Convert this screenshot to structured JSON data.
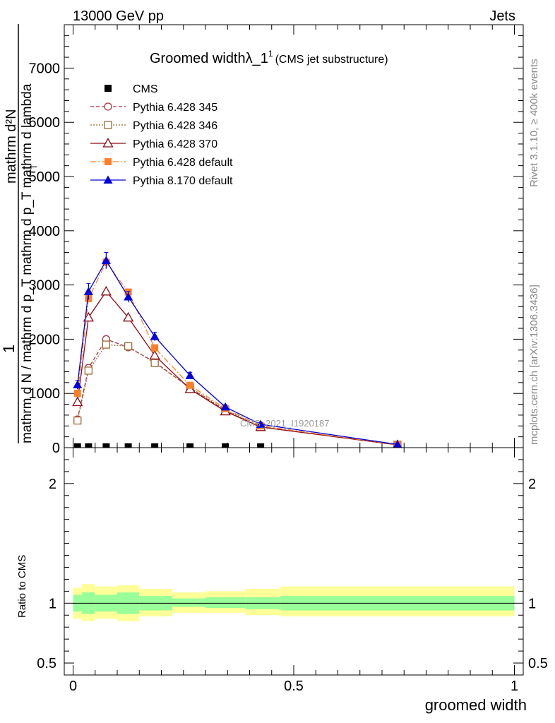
{
  "header": {
    "left": "13000 GeV pp",
    "right": "Jets",
    "side_top": "Rivet 3.1.10, ≥ 400k events",
    "side_bottom": "mcplots.cern.ch [arXiv:1306.3436]",
    "watermark": "CMS_2021_I1920187"
  },
  "chart_data": {
    "type": "line",
    "title": "Groomed width",
    "title_symbol": "λ_1",
    "title_superscript": "1",
    "subtitle": "(CMS jet substructure)",
    "xlabel": "groomed width",
    "ylabel_main_fraction_numerator": "1",
    "ylabel_main_numerator": "mathrm d²N",
    "ylabel_main_denominator": "mathrm d N / mathrm d p_T mathrm d p_T mathrm d lambda",
    "ylabel_main_sub": "T",
    "ylabel_ratio": "Ratio to CMS",
    "xlim": [
      -0.02,
      1.02
    ],
    "ylim_main": [
      0,
      7800
    ],
    "ylim_ratio": [
      0.4,
      2.3
    ],
    "x_ticks": [
      0,
      0.5,
      1
    ],
    "x_tick_labels": [
      "0",
      "0.5",
      "1"
    ],
    "y_ticks_main": [
      0,
      1000,
      2000,
      3000,
      4000,
      5000,
      6000,
      7000
    ],
    "y_tick_labels_main": [
      "0",
      "1000",
      "2000",
      "3000",
      "4000",
      "5000",
      "6000",
      "7000"
    ],
    "y_ticks_ratio": [
      0.5,
      1,
      2
    ],
    "y_tick_labels_ratio": [
      "0.5",
      "1",
      "2"
    ],
    "x": [
      0.01,
      0.035,
      0.075,
      0.125,
      0.185,
      0.265,
      0.345,
      0.425,
      0.735
    ],
    "bin_edges": [
      0.0,
      0.02,
      0.05,
      0.1,
      0.15,
      0.225,
      0.3,
      0.39,
      0.47,
      1.0
    ],
    "legend_position": "top-left",
    "series": [
      {
        "name": "CMS",
        "color": "#000000",
        "marker": "square-filled",
        "dash": "none",
        "values": [
          15,
          15,
          15,
          15,
          15,
          15,
          15,
          15,
          15
        ]
      },
      {
        "name": "Pythia 6.428 345",
        "color": "#b03040",
        "marker": "circle-open",
        "dash": "dashed",
        "values": [
          520,
          1470,
          2000,
          1850,
          1580,
          1100,
          680,
          380,
          55
        ]
      },
      {
        "name": "Pythia 6.428 346",
        "color": "#9c6b35",
        "marker": "square-open",
        "dash": "dotted",
        "values": [
          500,
          1420,
          1900,
          1870,
          1560,
          1110,
          700,
          380,
          55
        ]
      },
      {
        "name": "Pythia 6.428 370",
        "color": "#8b0a16",
        "marker": "triangle-open",
        "dash": "solid",
        "values": [
          840,
          2400,
          2880,
          2400,
          1700,
          1080,
          670,
          380,
          50
        ]
      },
      {
        "name": "Pythia 6.428 default",
        "color": "#ff7f27",
        "marker": "square-filled",
        "dash": "dashdot",
        "values": [
          1000,
          2750,
          3420,
          2870,
          1840,
          1150,
          720,
          400,
          55
        ]
      },
      {
        "name": "Pythia 8.170 default",
        "color": "#0000dd",
        "marker": "triangle-filled",
        "dash": "solid",
        "values": [
          1160,
          2880,
          3450,
          2780,
          2050,
          1330,
          750,
          430,
          60
        ],
        "errors": [
          80,
          150,
          150,
          100,
          80,
          60,
          40,
          30,
          10
        ]
      }
    ],
    "ratio_bands": {
      "inner_color": "#99ff99",
      "outer_color": "#ffff99",
      "inner": [
        [
          0.93,
          1.07
        ],
        [
          0.91,
          1.09
        ],
        [
          0.93,
          1.07
        ],
        [
          0.91,
          1.09
        ],
        [
          0.94,
          1.06
        ],
        [
          0.97,
          1.04
        ],
        [
          0.96,
          1.05
        ],
        [
          0.95,
          1.05
        ],
        [
          0.94,
          1.06
        ]
      ],
      "outer": [
        [
          0.87,
          1.13
        ],
        [
          0.85,
          1.16
        ],
        [
          0.87,
          1.14
        ],
        [
          0.85,
          1.15
        ],
        [
          0.89,
          1.12
        ],
        [
          0.92,
          1.09
        ],
        [
          0.92,
          1.1
        ],
        [
          0.9,
          1.12
        ],
        [
          0.89,
          1.14
        ]
      ]
    }
  }
}
